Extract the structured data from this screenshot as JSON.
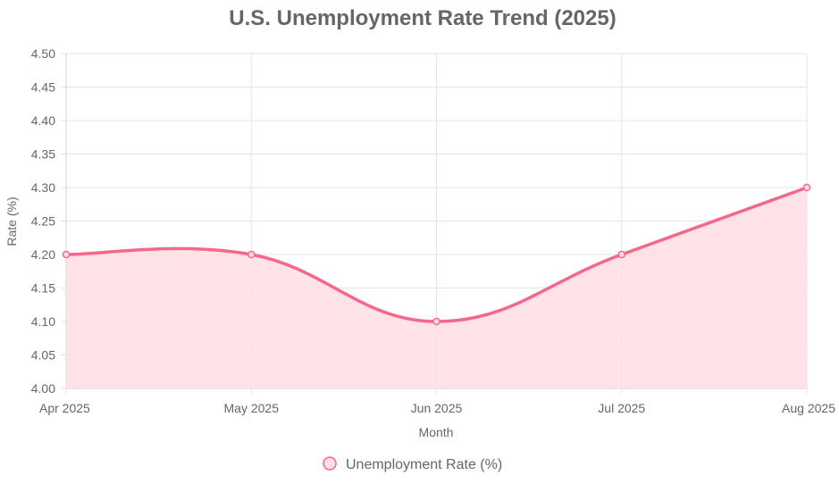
{
  "chart_data": {
    "type": "area",
    "title": "U.S. Unemployment Rate Trend (2025)",
    "xlabel": "Month",
    "ylabel": "Rate (%)",
    "categories": [
      "Apr 2025",
      "May 2025",
      "Jun 2025",
      "Jul 2025",
      "Aug 2025"
    ],
    "series": [
      {
        "name": "Unemployment Rate (%)",
        "values": [
          4.2,
          4.2,
          4.1,
          4.2,
          4.3
        ]
      }
    ],
    "ylim": [
      4.0,
      4.5
    ],
    "y_ticks": [
      "4.00",
      "4.05",
      "4.10",
      "4.15",
      "4.20",
      "4.25",
      "4.30",
      "4.35",
      "4.40",
      "4.45",
      "4.50"
    ],
    "grid": true,
    "legend_position": "bottom",
    "colors": {
      "line": "#f7678c",
      "fill": "#ffdee5",
      "grid": "#e5e5e5",
      "text": "#666666"
    }
  }
}
